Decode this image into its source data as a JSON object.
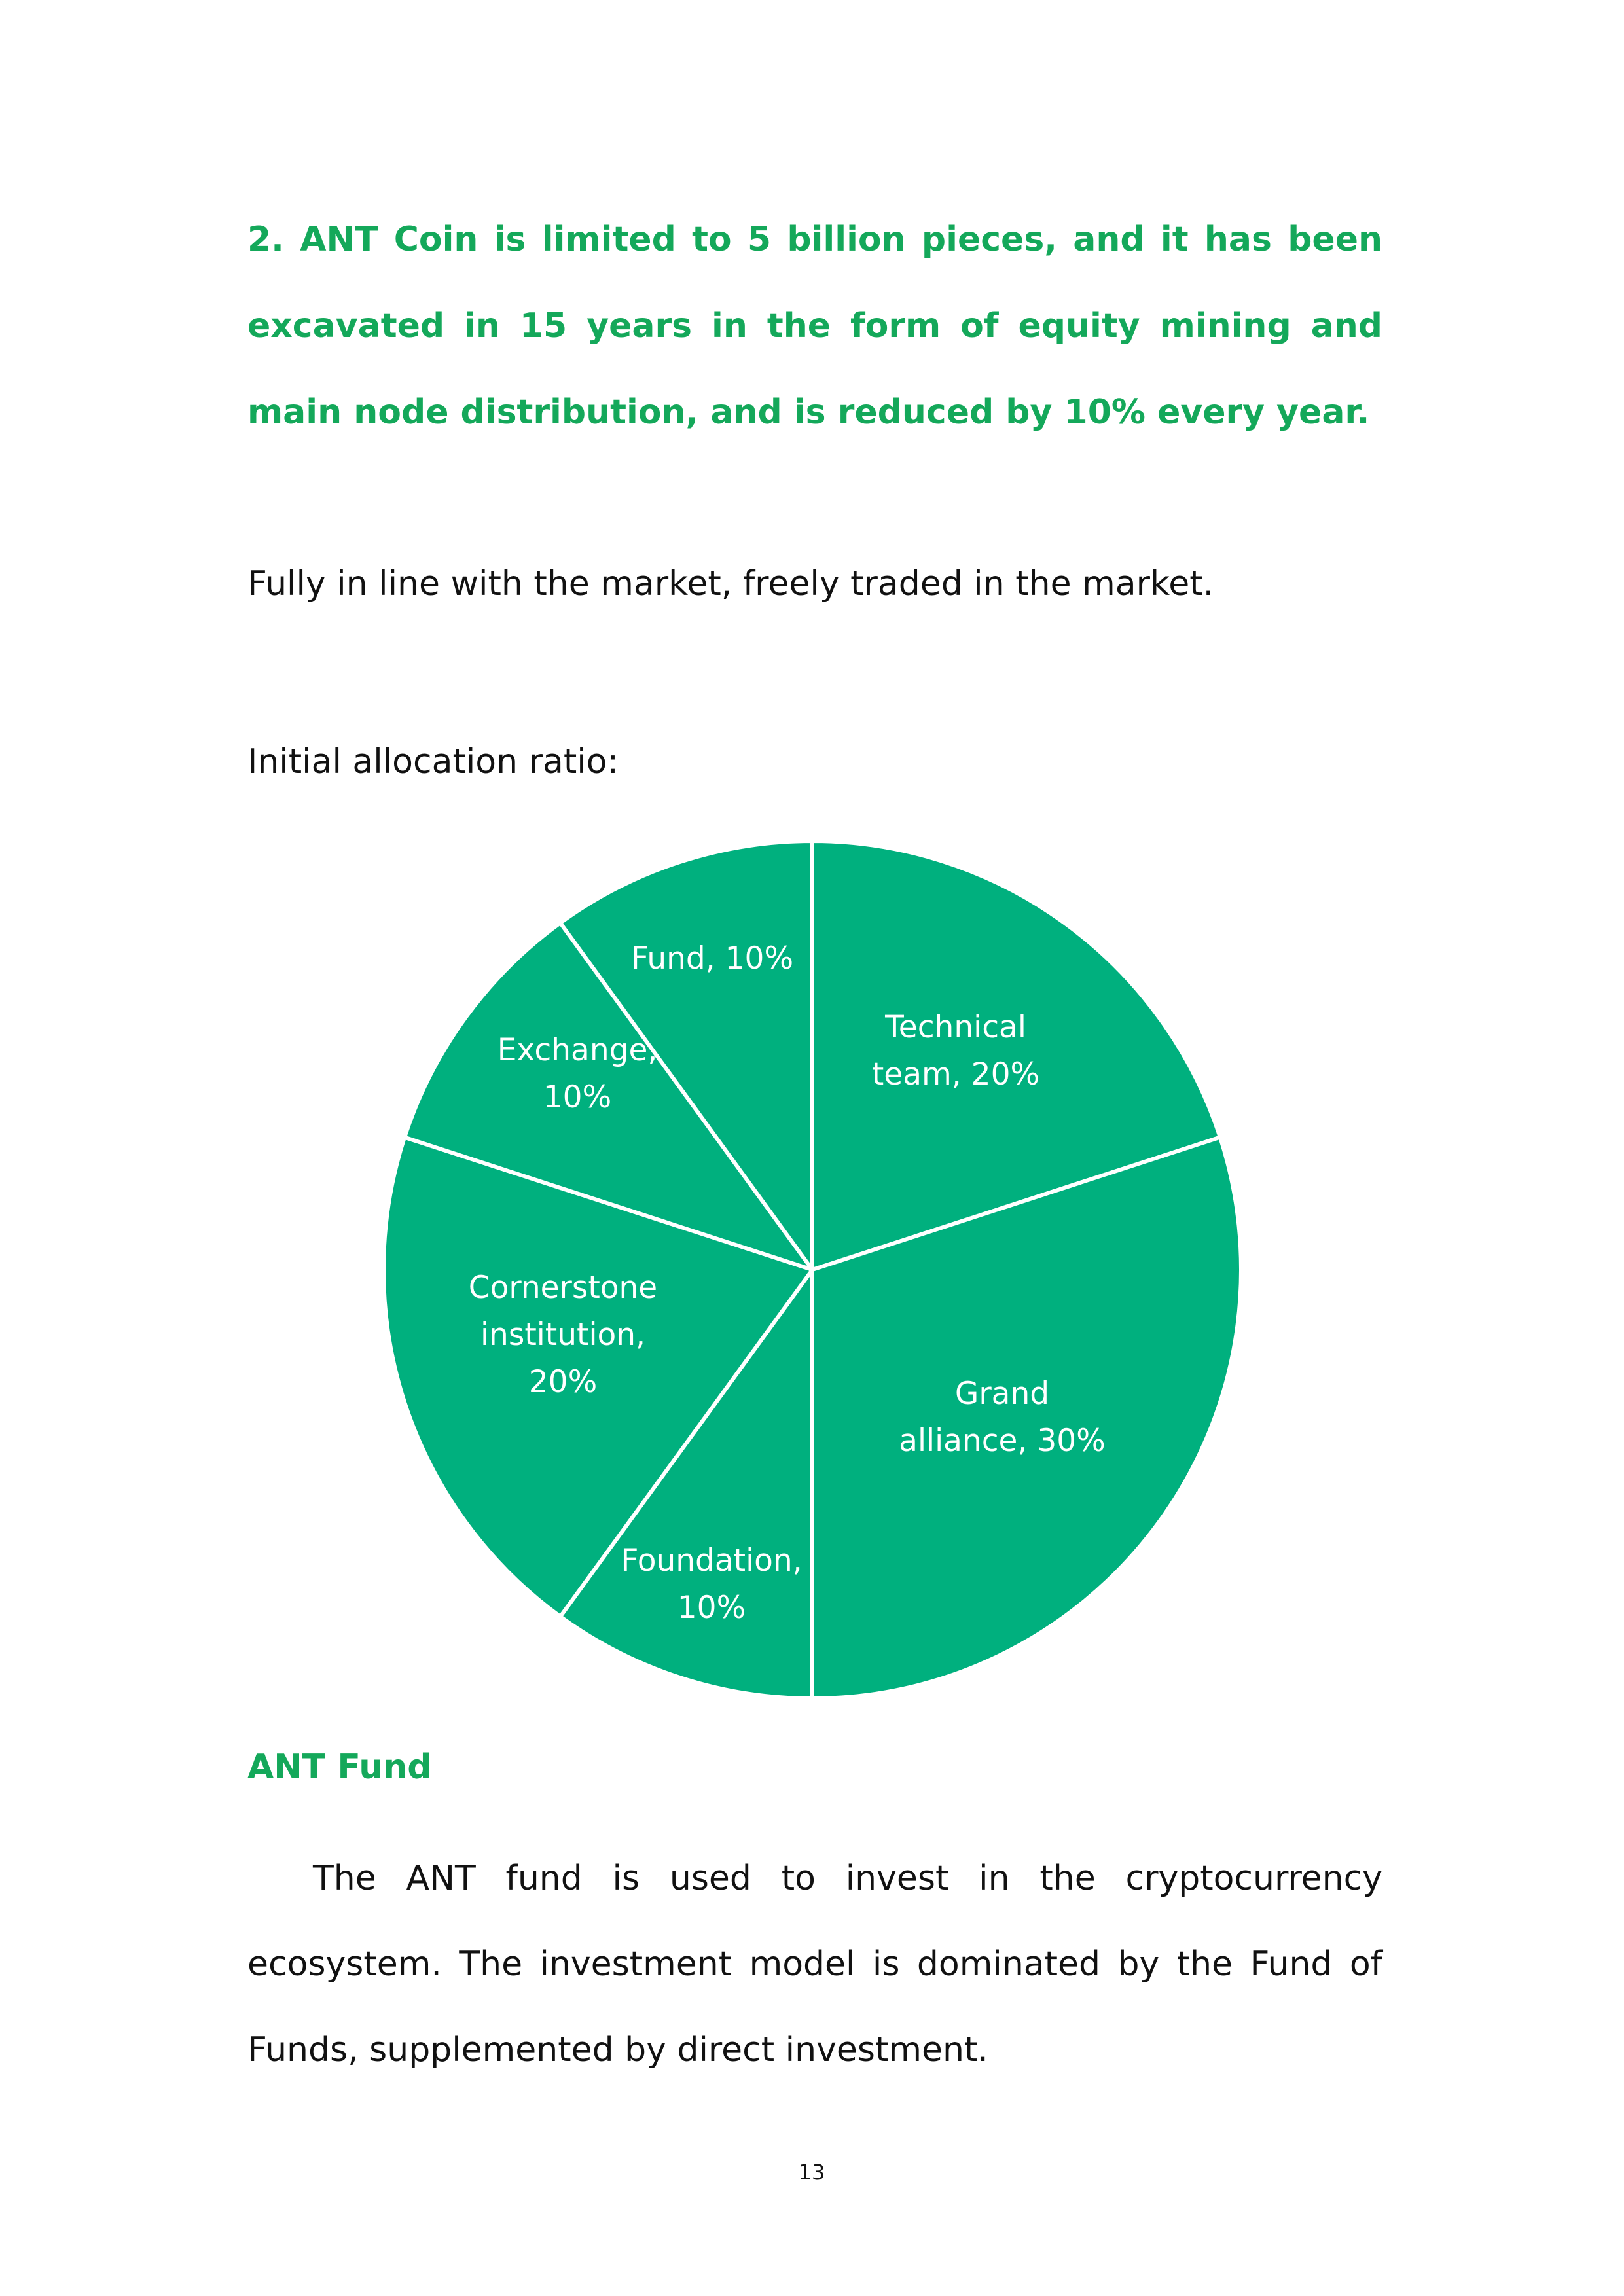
{
  "heading": "2. ANT Coin is limited to 5 billion pieces, and it has been excavated in 15 years in the form of equity mining and main node distribution, and is reduced by 10% every year.",
  "market_text": "Fully in line with the market, freely traded in the market.",
  "allocation_label": "Initial allocation ratio:",
  "chart_data": {
    "type": "pie",
    "slice_color": "#00b07e",
    "border_color": "#ffffff",
    "start": "12 o'clock",
    "direction": "clockwise",
    "slices": [
      {
        "label_lines": [
          "Technical",
          "team, 20%"
        ],
        "value": 20
      },
      {
        "label_lines": [
          "Grand",
          "alliance, 30%"
        ],
        "value": 30
      },
      {
        "label_lines": [
          "Foundation,",
          "10%"
        ],
        "value": 10
      },
      {
        "label_lines": [
          "Cornerstone",
          "institution,",
          "20%"
        ],
        "value": 20
      },
      {
        "label_lines": [
          "Exchange,",
          "10%"
        ],
        "value": 10
      },
      {
        "label_lines": [
          "Fund, 10%"
        ],
        "value": 10
      }
    ]
  },
  "fund_heading": "ANT Fund",
  "fund_body": "The ANT fund is used to invest in the cryptocurrency ecosystem. The investment model is dominated by the Fund of Funds, supplemented by direct investment.",
  "page_number": "13",
  "colors": {
    "accent_green": "#14a85a",
    "text": "#111111"
  }
}
